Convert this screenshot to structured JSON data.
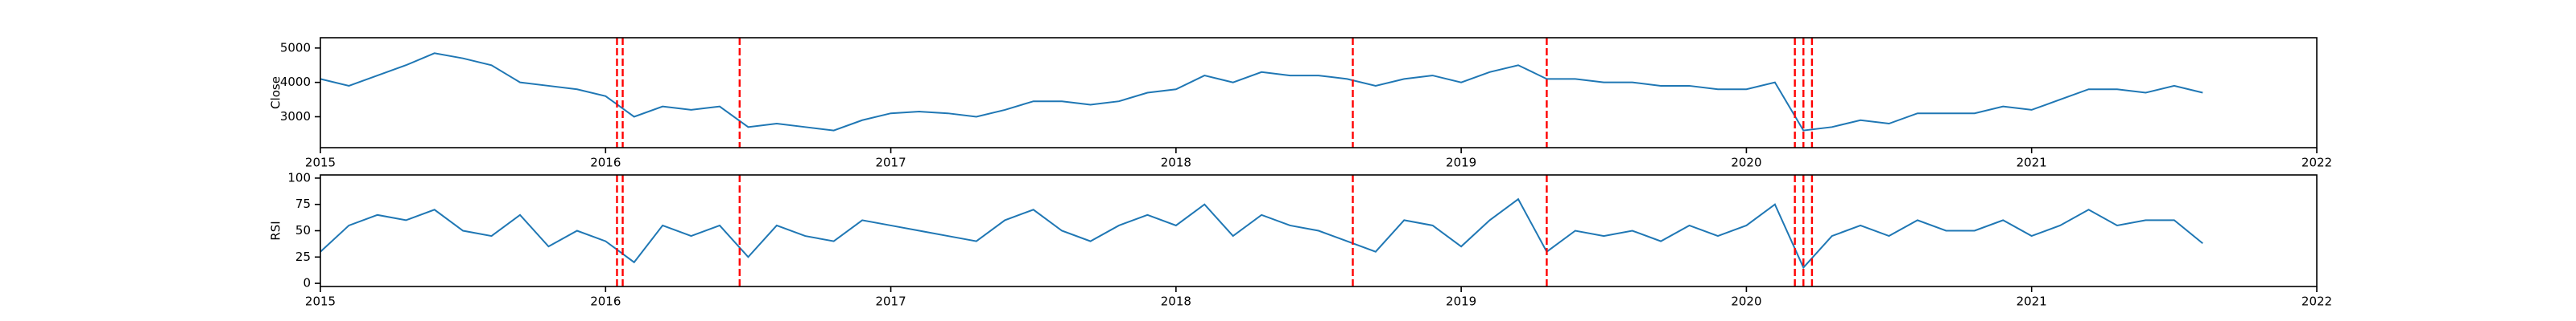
{
  "chart_data": [
    {
      "type": "line",
      "ylabel": "Close",
      "x": [
        2015.0,
        2015.1,
        2015.2,
        2015.3,
        2015.4,
        2015.5,
        2015.6,
        2015.7,
        2015.8,
        2015.9,
        2016.0,
        2016.1,
        2016.2,
        2016.3,
        2016.4,
        2016.5,
        2016.6,
        2016.7,
        2016.8,
        2016.9,
        2017.0,
        2017.1,
        2017.2,
        2017.3,
        2017.4,
        2017.5,
        2017.6,
        2017.7,
        2017.8,
        2017.9,
        2018.0,
        2018.1,
        2018.2,
        2018.3,
        2018.4,
        2018.5,
        2018.6,
        2018.7,
        2018.8,
        2018.9,
        2019.0,
        2019.1,
        2019.2,
        2019.3,
        2019.4,
        2019.5,
        2019.6,
        2019.7,
        2019.8,
        2019.9,
        2020.0,
        2020.1,
        2020.2,
        2020.3,
        2020.4,
        2020.5,
        2020.6,
        2020.7,
        2020.8,
        2020.9,
        2021.0,
        2021.1,
        2021.2,
        2021.3,
        2021.4,
        2021.5,
        2021.6
      ],
      "series": [
        {
          "color": "#1f77b4",
          "values": [
            4100,
            3900,
            4200,
            4500,
            4850,
            4700,
            4500,
            4000,
            3900,
            3800,
            3600,
            3000,
            3300,
            3200,
            3300,
            2700,
            2800,
            2700,
            2600,
            2900,
            3100,
            3150,
            3100,
            3000,
            3200,
            3450,
            3450,
            3350,
            3450,
            3700,
            3800,
            4200,
            4000,
            4300,
            4200,
            4200,
            4100,
            3900,
            4100,
            4200,
            4000,
            4300,
            4500,
            4100,
            4100,
            4000,
            4000,
            3900,
            3900,
            3800,
            3800,
            4000,
            2600,
            2700,
            2900,
            2800,
            3100,
            3100,
            3100,
            3300,
            3200,
            3500,
            3800,
            3800,
            3700,
            3900,
            3700
          ]
        }
      ],
      "xlim": [
        2015,
        2022
      ],
      "xticks": [
        2015,
        2016,
        2017,
        2018,
        2019,
        2020,
        2021,
        2022
      ],
      "ylim": [
        2100,
        5300
      ],
      "yticks": [
        3000,
        4000,
        5000
      ],
      "vlines": {
        "x": [
          2016.04,
          2016.06,
          2016.47,
          2018.62,
          2019.3,
          2020.17,
          2020.2,
          2020.23
        ],
        "color": "red"
      }
    },
    {
      "type": "line",
      "ylabel": "RSI",
      "x": [
        2015.0,
        2015.1,
        2015.2,
        2015.3,
        2015.4,
        2015.5,
        2015.6,
        2015.7,
        2015.8,
        2015.9,
        2016.0,
        2016.1,
        2016.2,
        2016.3,
        2016.4,
        2016.5,
        2016.6,
        2016.7,
        2016.8,
        2016.9,
        2017.0,
        2017.1,
        2017.2,
        2017.3,
        2017.4,
        2017.5,
        2017.6,
        2017.7,
        2017.8,
        2017.9,
        2018.0,
        2018.1,
        2018.2,
        2018.3,
        2018.4,
        2018.5,
        2018.6,
        2018.7,
        2018.8,
        2018.9,
        2019.0,
        2019.1,
        2019.2,
        2019.3,
        2019.4,
        2019.5,
        2019.6,
        2019.7,
        2019.8,
        2019.9,
        2020.0,
        2020.1,
        2020.2,
        2020.3,
        2020.4,
        2020.5,
        2020.6,
        2020.7,
        2020.8,
        2020.9,
        2021.0,
        2021.1,
        2021.2,
        2021.3,
        2021.4,
        2021.5,
        2021.6
      ],
      "series": [
        {
          "color": "#1f77b4",
          "values": [
            30,
            55,
            65,
            60,
            70,
            50,
            45,
            65,
            35,
            50,
            40,
            20,
            55,
            45,
            55,
            25,
            55,
            45,
            40,
            60,
            55,
            50,
            45,
            40,
            60,
            70,
            50,
            40,
            55,
            65,
            55,
            75,
            45,
            65,
            55,
            50,
            40,
            30,
            60,
            55,
            35,
            60,
            80,
            30,
            50,
            45,
            50,
            40,
            55,
            45,
            55,
            75,
            15,
            45,
            55,
            45,
            60,
            50,
            50,
            60,
            45,
            55,
            70,
            55,
            60,
            60,
            38
          ]
        }
      ],
      "xlim": [
        2015,
        2022
      ],
      "xticks": [
        2015,
        2016,
        2017,
        2018,
        2019,
        2020,
        2021,
        2022
      ],
      "ylim": [
        -3,
        103
      ],
      "yticks": [
        0,
        25,
        50,
        75,
        100
      ],
      "vlines": {
        "x": [
          2016.04,
          2016.06,
          2016.47,
          2018.62,
          2019.3,
          2020.17,
          2020.2,
          2020.23
        ],
        "color": "red"
      }
    }
  ]
}
